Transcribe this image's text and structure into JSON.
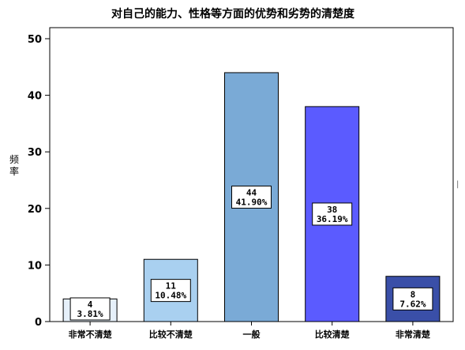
{
  "chart_data": {
    "type": "bar",
    "title": "对自己的能力、性格等方面的优势和劣势的清楚度",
    "xlabel": "",
    "ylabel": "频率",
    "ylim": [
      0,
      50
    ],
    "yticks": [
      0,
      10,
      20,
      30,
      40,
      50
    ],
    "grid": false,
    "categories": [
      "非常不清楚",
      "比较不清楚",
      "一般",
      "比较清楚",
      "非常清楚"
    ],
    "values": [
      4,
      11,
      44,
      38,
      8
    ],
    "percent_labels": [
      "3.81%",
      "10.48%",
      "41.90%",
      "36.19%",
      "7.62%"
    ],
    "colors": [
      "#e6f0fa",
      "#a9d0f0",
      "#7aaad6",
      "#5b5bff",
      "#3a4fa8"
    ]
  }
}
